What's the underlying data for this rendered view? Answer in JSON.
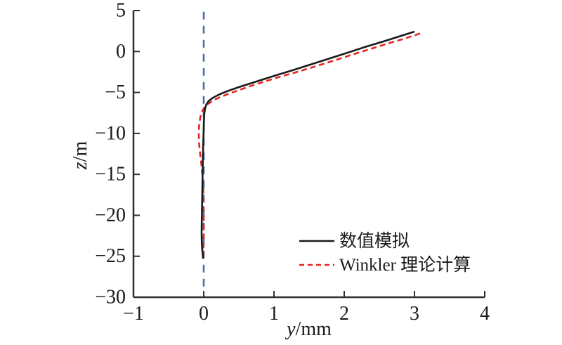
{
  "figure": {
    "background_color": "#ffffff",
    "axis_color": "#2e2e2e",
    "text_color": "#1a1a1a"
  },
  "chart_data": {
    "type": "line",
    "title": "",
    "xlabel": "y/mm",
    "xlabel_variable": "y",
    "xlabel_unit": "/mm",
    "ylabel": "z/m",
    "ylabel_variable": "z",
    "ylabel_unit": "/m",
    "xlim": [
      -1,
      4
    ],
    "ylim": [
      -30,
      5
    ],
    "x_ticks": [
      -1,
      0,
      1,
      2,
      3,
      4
    ],
    "y_ticks": [
      5,
      0,
      -5,
      -10,
      -15,
      -20,
      -25,
      -30
    ],
    "grid": false,
    "legend": {
      "position": "inside-lower-right",
      "items": [
        {
          "label": "数值模拟",
          "color": "#1a1a1a",
          "line_style": "solid"
        },
        {
          "label": "Winkler 理论计算",
          "color": "#e8251d",
          "line_style": "dashed"
        }
      ]
    },
    "series": [
      {
        "name": "数值模拟",
        "color": "#1a1a1a",
        "line_style": "solid",
        "dash": null,
        "points": [
          [
            3.0,
            2.43
          ],
          [
            2.77,
            1.8
          ],
          [
            2.55,
            1.2
          ],
          [
            2.32,
            0.62
          ],
          [
            2.1,
            0.0
          ],
          [
            1.9,
            -0.55
          ],
          [
            1.7,
            -1.1
          ],
          [
            1.5,
            -1.65
          ],
          [
            1.3,
            -2.2
          ],
          [
            1.1,
            -2.72
          ],
          [
            0.9,
            -3.25
          ],
          [
            0.7,
            -3.8
          ],
          [
            0.5,
            -4.35
          ],
          [
            0.35,
            -4.8
          ],
          [
            0.22,
            -5.25
          ],
          [
            0.13,
            -5.65
          ],
          [
            0.07,
            -6.05
          ],
          [
            0.035,
            -6.5
          ],
          [
            0.018,
            -7.0
          ],
          [
            0.008,
            -7.6
          ],
          [
            0.003,
            -8.4
          ],
          [
            0.0,
            -9.5
          ],
          [
            -0.008,
            -11.5
          ],
          [
            -0.013,
            -13.5
          ],
          [
            -0.018,
            -16.0
          ],
          [
            -0.023,
            -18.5
          ],
          [
            -0.028,
            -20.8
          ],
          [
            -0.03,
            -22.3
          ],
          [
            -0.027,
            -23.5
          ],
          [
            -0.018,
            -24.5
          ],
          [
            -0.008,
            -25.3
          ]
        ]
      },
      {
        "name": "Winkler 理论计算",
        "color": "#e8251d",
        "line_style": "dashed",
        "dash": [
          8,
          5
        ],
        "points": [
          [
            3.08,
            2.2
          ],
          [
            2.85,
            1.55
          ],
          [
            2.6,
            0.92
          ],
          [
            2.35,
            0.25
          ],
          [
            2.1,
            -0.42
          ],
          [
            1.9,
            -0.98
          ],
          [
            1.7,
            -1.52
          ],
          [
            1.5,
            -2.05
          ],
          [
            1.3,
            -2.57
          ],
          [
            1.1,
            -3.05
          ],
          [
            0.9,
            -3.58
          ],
          [
            0.7,
            -4.12
          ],
          [
            0.5,
            -4.72
          ],
          [
            0.35,
            -5.18
          ],
          [
            0.22,
            -5.62
          ],
          [
            0.13,
            -6.0
          ],
          [
            0.06,
            -6.4
          ],
          [
            0.01,
            -6.85
          ],
          [
            -0.03,
            -7.4
          ],
          [
            -0.05,
            -8.1
          ],
          [
            -0.065,
            -9.0
          ],
          [
            -0.07,
            -10.0
          ],
          [
            -0.068,
            -11.0
          ],
          [
            -0.058,
            -12.0
          ],
          [
            -0.045,
            -13.0
          ],
          [
            -0.03,
            -14.0
          ],
          [
            -0.017,
            -15.2
          ],
          [
            -0.008,
            -16.6
          ],
          [
            -0.003,
            -18.2
          ],
          [
            0.0,
            -20.0
          ],
          [
            0.0,
            -22.5
          ],
          [
            -0.003,
            -24.0
          ],
          [
            -0.008,
            -25.3
          ]
        ]
      },
      {
        "name": "zero-displacement-reference",
        "color": "#4e6fae",
        "line_style": "dashed",
        "dash": [
          11,
          9
        ],
        "in_legend": false,
        "points": [
          [
            0,
            4.85
          ],
          [
            0,
            -28.9
          ]
        ]
      }
    ]
  }
}
